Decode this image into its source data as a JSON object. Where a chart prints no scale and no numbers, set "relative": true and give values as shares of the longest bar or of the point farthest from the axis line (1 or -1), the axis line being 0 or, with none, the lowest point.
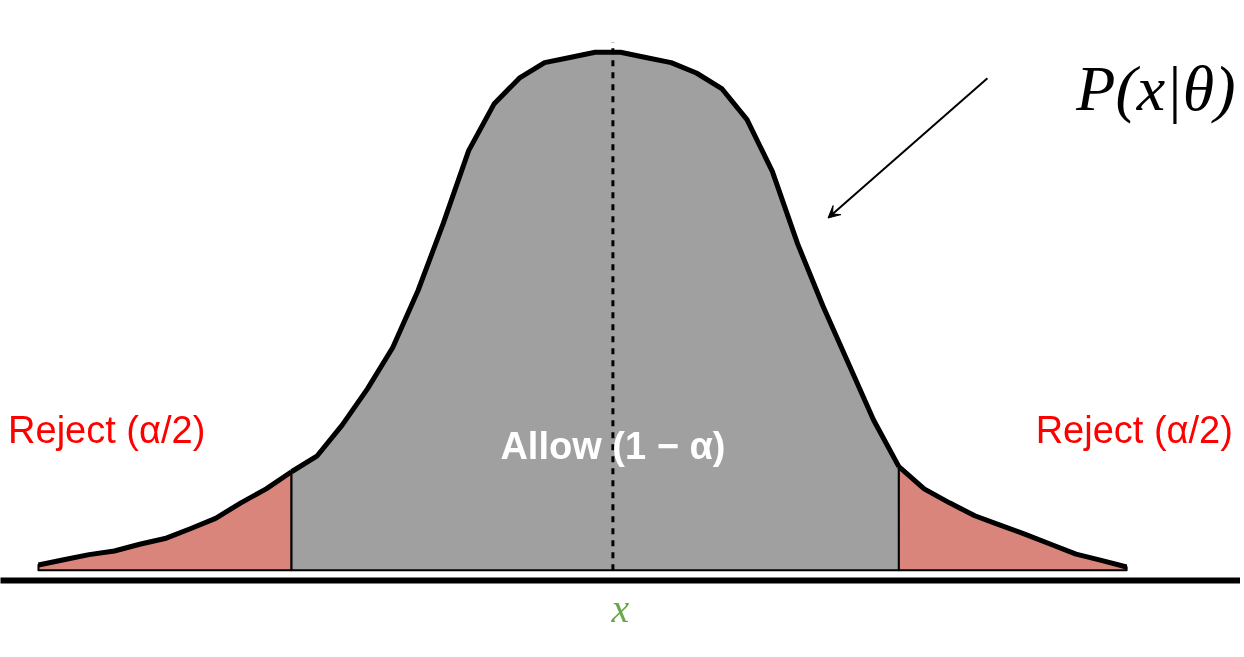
{
  "chart_data": {
    "type": "area",
    "relative": true,
    "xlabel": "x",
    "categories": [
      null,
      null,
      null,
      null,
      null,
      null,
      null,
      null,
      null,
      null,
      null,
      null,
      null,
      null,
      null,
      null,
      null,
      null,
      null,
      null,
      null,
      null,
      null,
      null,
      null,
      null,
      null,
      null,
      null,
      null,
      null,
      null,
      null,
      null,
      null,
      null,
      null,
      null,
      null,
      null,
      null,
      null,
      null,
      null
    ],
    "series": [
      {
        "color": "#d9857b",
        "values": [
          0.01,
          0.02,
          0.03,
          0.037,
          0.05,
          0.061,
          0.08,
          0.1,
          0.13,
          0.157,
          0.19,
          null,
          null,
          null,
          null,
          null,
          null,
          null,
          null,
          null,
          null,
          null,
          null,
          null,
          null,
          null,
          null,
          null,
          null,
          null,
          null,
          null,
          null,
          null,
          null,
          null,
          null,
          null,
          null,
          null,
          null,
          null,
          null,
          null
        ]
      },
      {
        "color": "#a0a0a0",
        "values": [
          null,
          null,
          null,
          null,
          null,
          null,
          null,
          null,
          null,
          null,
          0.19,
          0.22,
          0.28,
          0.35,
          0.43,
          0.54,
          0.67,
          0.81,
          0.9,
          0.95,
          0.98,
          0.99,
          1.0,
          1.0,
          0.99,
          0.98,
          0.96,
          0.93,
          0.87,
          0.77,
          0.63,
          0.51,
          0.4,
          0.29,
          0.2,
          null,
          null,
          null,
          null,
          null,
          null,
          null,
          null,
          null
        ]
      },
      {
        "color": "#d9857b",
        "values": [
          null,
          null,
          null,
          null,
          null,
          null,
          null,
          null,
          null,
          null,
          null,
          null,
          null,
          null,
          null,
          null,
          null,
          null,
          null,
          null,
          null,
          null,
          null,
          null,
          null,
          null,
          null,
          null,
          null,
          null,
          null,
          null,
          null,
          null,
          0.2,
          0.157,
          0.13,
          0.105,
          0.087,
          0.069,
          0.05,
          0.031,
          0.019,
          0.006
        ]
      }
    ],
    "ref_lines": [
      {
        "axis": "x",
        "line_style": "dashed",
        "color": "#000000"
      }
    ],
    "annotations": [
      "Reject (α/2)",
      "Allow (1 − α)",
      "Reject (α/2)",
      "P(x|θ)"
    ]
  }
}
